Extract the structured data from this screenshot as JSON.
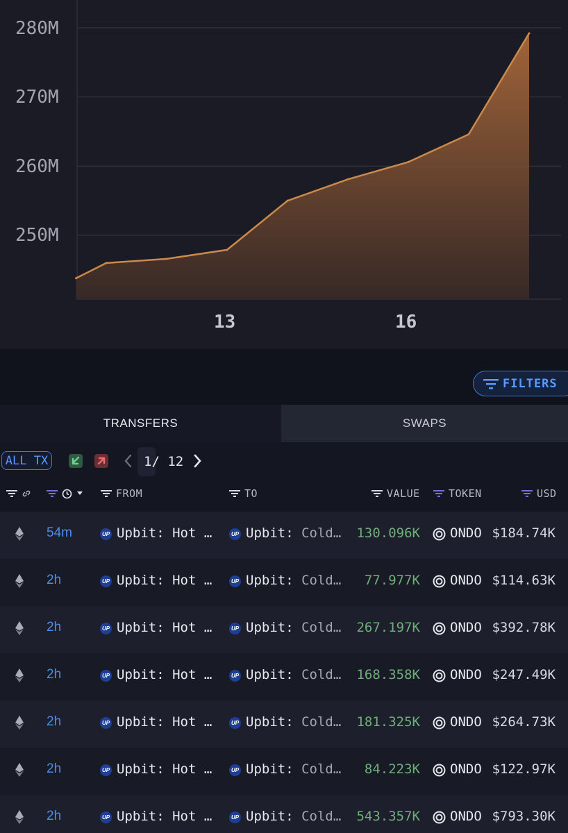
{
  "chart_data": {
    "type": "area",
    "y_ticks": [
      "280M",
      "270M",
      "260M",
      "250M"
    ],
    "x_ticks": [
      "13",
      "16"
    ],
    "ylim": [
      240500000,
      284500000
    ],
    "grid": true,
    "color": "#c98a4c",
    "x": [
      10.5,
      11,
      12,
      13,
      14,
      15,
      16,
      17,
      18
    ],
    "y": [
      243800000,
      246000000,
      246600000,
      247900000,
      255000000,
      258100000,
      260600000,
      264600000,
      279200000
    ]
  },
  "filters_button_label": "FILTERS",
  "tabs": [
    {
      "label": "TRANSFERS",
      "active": true
    },
    {
      "label": "SWAPS",
      "active": false
    }
  ],
  "toolbar": {
    "all_tx_label": "ALL TX",
    "page_indicator": "1/ 12"
  },
  "columns": {
    "from": "FROM",
    "to": "TO",
    "value": "VALUE",
    "token": "TOKEN",
    "usd": "USD"
  },
  "colors": {
    "accent": "#4b8de8",
    "value_green": "#6fae79",
    "chart_orange": "#c98a4c"
  },
  "rows": [
    {
      "chain_icon": "ethereum-icon",
      "time": "54m",
      "from": "Upbit: Hot …",
      "to_name": "Upbit:",
      "to_tag": "Cold…",
      "value": "130.096K",
      "token": "ONDO",
      "usd": "$184.74K"
    },
    {
      "chain_icon": "ethereum-icon",
      "time": "2h",
      "from": "Upbit: Hot …",
      "to_name": "Upbit:",
      "to_tag": "Cold…",
      "value": "77.977K",
      "token": "ONDO",
      "usd": "$114.63K"
    },
    {
      "chain_icon": "ethereum-icon",
      "time": "2h",
      "from": "Upbit: Hot …",
      "to_name": "Upbit:",
      "to_tag": "Cold…",
      "value": "267.197K",
      "token": "ONDO",
      "usd": "$392.78K"
    },
    {
      "chain_icon": "ethereum-icon",
      "time": "2h",
      "from": "Upbit: Hot …",
      "to_name": "Upbit:",
      "to_tag": "Cold…",
      "value": "168.358K",
      "token": "ONDO",
      "usd": "$247.49K"
    },
    {
      "chain_icon": "ethereum-icon",
      "time": "2h",
      "from": "Upbit: Hot …",
      "to_name": "Upbit:",
      "to_tag": "Cold…",
      "value": "181.325K",
      "token": "ONDO",
      "usd": "$264.73K"
    },
    {
      "chain_icon": "ethereum-icon",
      "time": "2h",
      "from": "Upbit: Hot …",
      "to_name": "Upbit:",
      "to_tag": "Cold…",
      "value": "84.223K",
      "token": "ONDO",
      "usd": "$122.97K"
    },
    {
      "chain_icon": "ethereum-icon",
      "time": "2h",
      "from": "Upbit: Hot …",
      "to_name": "Upbit:",
      "to_tag": "Cold…",
      "value": "543.357K",
      "token": "ONDO",
      "usd": "$793.30K"
    }
  ]
}
